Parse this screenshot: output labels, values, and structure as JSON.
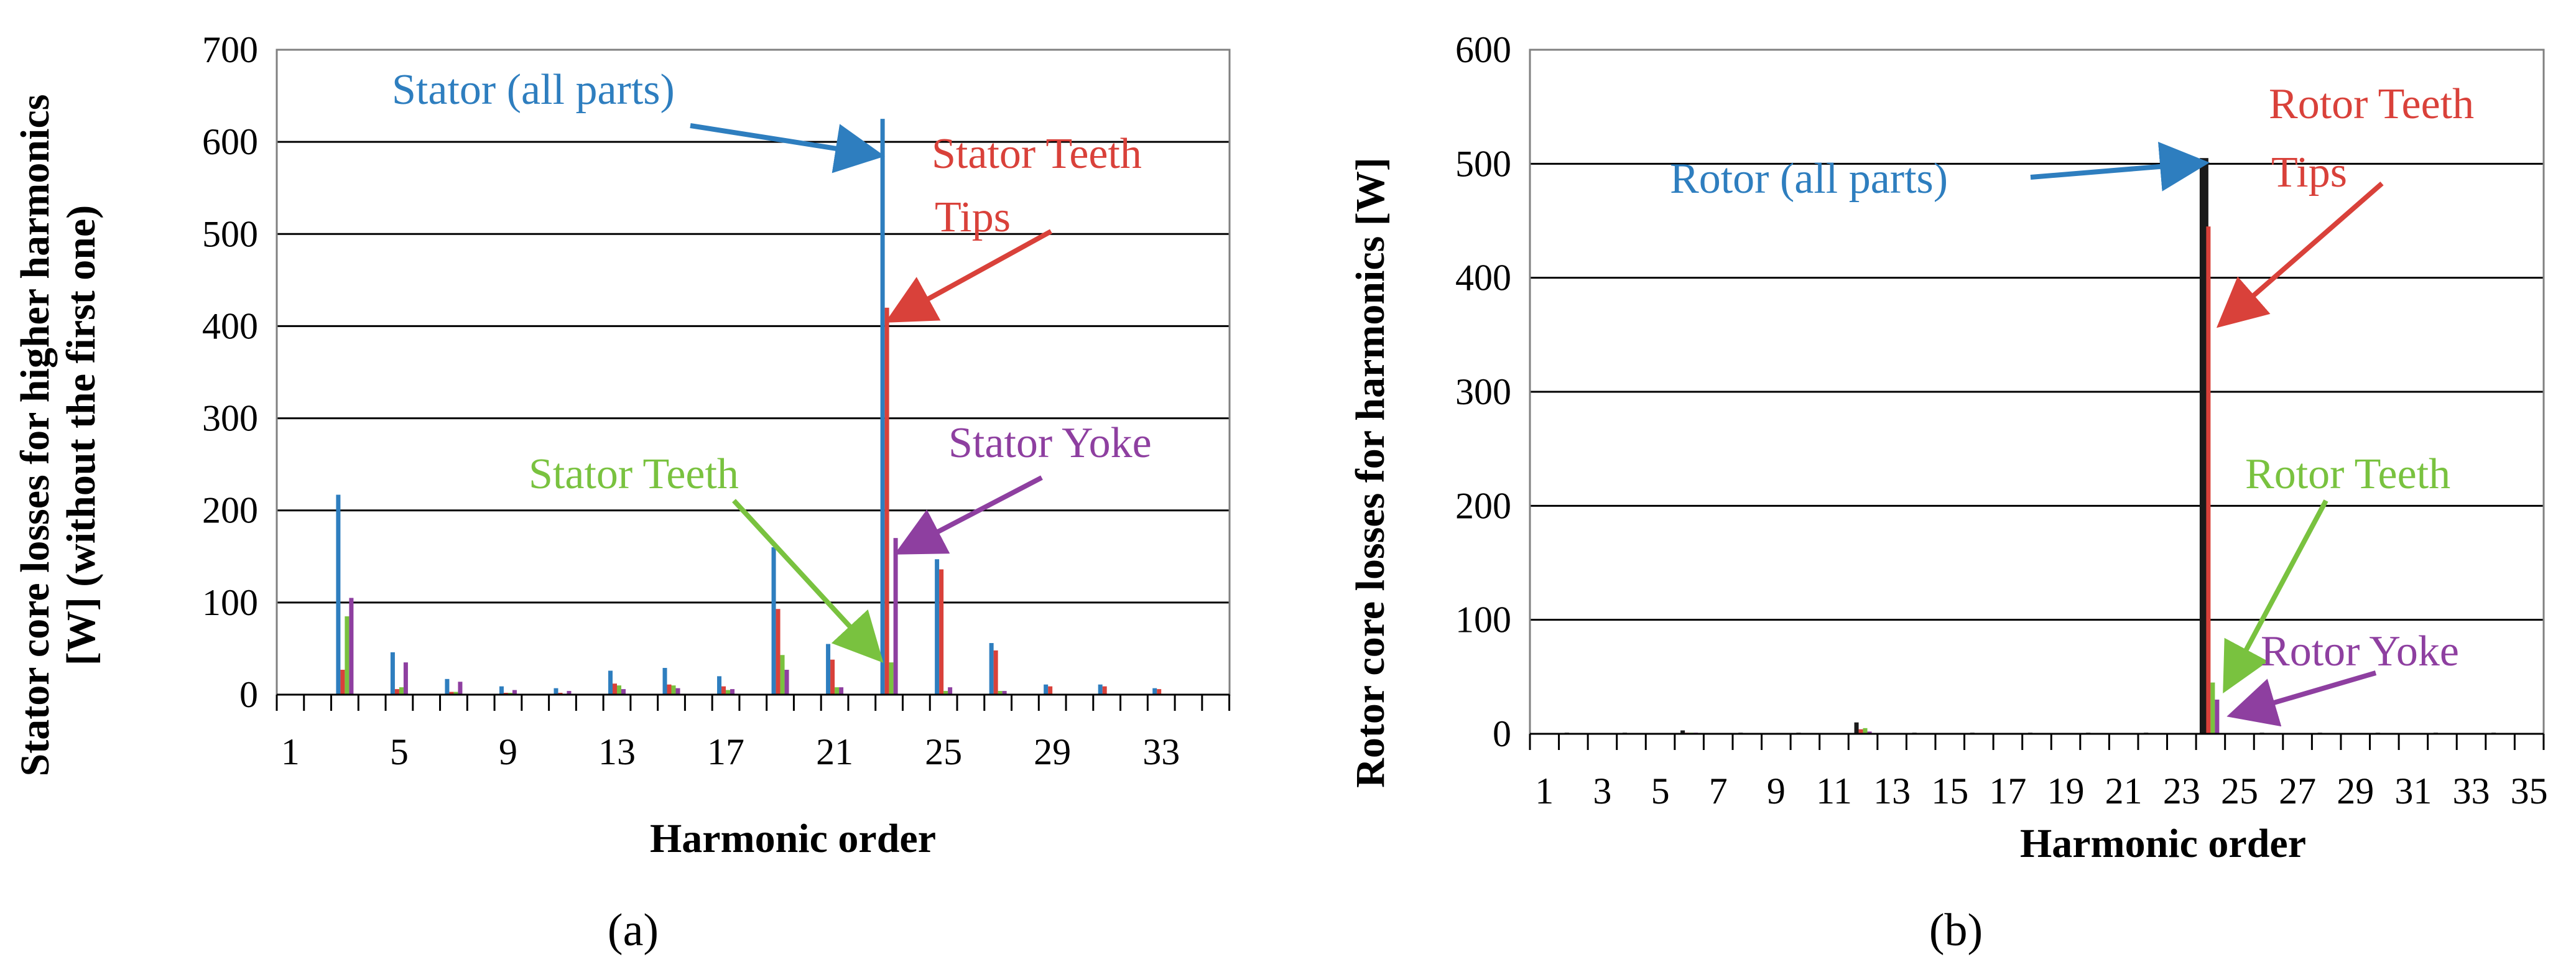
{
  "colors": {
    "stator_all": "#2E7EBF",
    "tips": "#D9413A",
    "teeth": "#79C23F",
    "yoke": "#8E3FA0",
    "rotor_all": "#1a1a1a",
    "grid": "#000000",
    "plot_border": "#808080"
  },
  "chart_data": [
    {
      "type": "bar",
      "panel_label": "(a)",
      "xlabel": "Harmonic order",
      "ylabel_line1": "Stator core losses for higher harmonics",
      "ylabel_line2": "[W] (without the first one)",
      "ylim": [
        0,
        700
      ],
      "yticks": [
        0,
        100,
        200,
        300,
        400,
        500,
        600,
        700
      ],
      "grid": true,
      "x_range": [
        1,
        35
      ],
      "xticks": [
        "1",
        "5",
        "9",
        "13",
        "17",
        "21",
        "25",
        "29",
        "33"
      ],
      "xtick_values": [
        1,
        5,
        9,
        13,
        17,
        21,
        25,
        29,
        33
      ],
      "series": [
        {
          "key": "stator_all",
          "x": [
            3,
            5,
            7,
            9,
            11,
            13,
            15,
            17,
            19,
            21,
            23,
            25,
            27,
            29,
            31,
            33
          ],
          "values": [
            217,
            46,
            17,
            9,
            7,
            26,
            29,
            20,
            160,
            55,
            625,
            147,
            56,
            11,
            11,
            7
          ]
        },
        {
          "key": "tips",
          "x": [
            3,
            5,
            7,
            9,
            11,
            13,
            15,
            17,
            19,
            21,
            23,
            25,
            27,
            29,
            31,
            33
          ],
          "values": [
            27,
            6,
            3,
            2,
            2,
            12,
            11,
            9,
            93,
            38,
            420,
            136,
            48,
            9,
            9,
            6
          ]
        },
        {
          "key": "teeth",
          "x": [
            3,
            5,
            7,
            9,
            11,
            13,
            15,
            17,
            19,
            21,
            23,
            25,
            27,
            29,
            31,
            33
          ],
          "values": [
            85,
            8,
            3,
            2,
            1,
            10,
            10,
            5,
            43,
            8,
            35,
            4,
            4,
            1,
            1,
            1
          ]
        },
        {
          "key": "yoke",
          "x": [
            3,
            5,
            7,
            9,
            11,
            13,
            15,
            17,
            19,
            21,
            23,
            25,
            27,
            29,
            31,
            33
          ],
          "values": [
            105,
            35,
            14,
            5,
            4,
            6,
            7,
            6,
            27,
            8,
            170,
            8,
            4,
            1,
            1,
            1
          ]
        }
      ],
      "annotations": [
        {
          "key": "stator_all",
          "text": "Stator (all parts)"
        },
        {
          "key": "tips",
          "text_line1": "Stator Teeth",
          "text_line2": "Tips"
        },
        {
          "key": "teeth",
          "text": "Stator Teeth"
        },
        {
          "key": "yoke",
          "text": "Stator Yoke"
        }
      ]
    },
    {
      "type": "bar",
      "panel_label": "(b)",
      "xlabel": "Harmonic order",
      "ylabel": "Rotor core losses for  harmonics [W]",
      "ylim": [
        0,
        600
      ],
      "yticks": [
        0,
        100,
        200,
        300,
        400,
        500,
        600
      ],
      "grid": true,
      "x_range": [
        1,
        35
      ],
      "xticks": [
        "1",
        "3",
        "5",
        "7",
        "9",
        "11",
        "13",
        "15",
        "17",
        "19",
        "21",
        "23",
        "25",
        "27",
        "29",
        "31",
        "33",
        "35"
      ],
      "xtick_values": [
        1,
        3,
        5,
        7,
        9,
        11,
        13,
        15,
        17,
        19,
        21,
        23,
        25,
        27,
        29,
        31,
        33,
        35
      ],
      "series": [
        {
          "key": "rotor_all",
          "x": [
            2,
            4,
            6,
            8,
            10,
            12,
            14,
            16,
            18,
            20,
            22,
            24,
            26,
            28,
            30,
            32,
            34
          ],
          "values": [
            1,
            1,
            3,
            1,
            1,
            10,
            1,
            1,
            1,
            1,
            1,
            505,
            1,
            1,
            1,
            1,
            1
          ]
        },
        {
          "key": "tips",
          "x": [
            6,
            12,
            24
          ],
          "values": [
            1,
            4,
            445
          ]
        },
        {
          "key": "teeth",
          "x": [
            6,
            12,
            24
          ],
          "values": [
            1,
            5,
            45
          ]
        },
        {
          "key": "yoke",
          "x": [
            6,
            12,
            24
          ],
          "values": [
            1,
            2,
            30
          ]
        }
      ],
      "annotations": [
        {
          "key": "rotor_all",
          "text": "Rotor (all parts)"
        },
        {
          "key": "tips",
          "text_line1": "Rotor Teeth",
          "text_line2": "Tips"
        },
        {
          "key": "teeth",
          "text": "Rotor Teeth"
        },
        {
          "key": "yoke",
          "text": "Rotor Yoke"
        }
      ]
    }
  ]
}
